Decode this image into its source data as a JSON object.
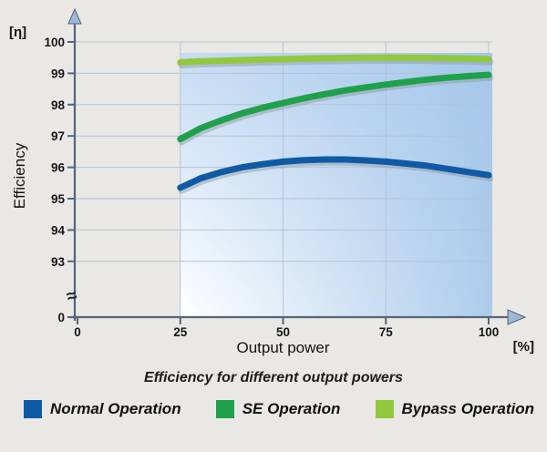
{
  "chart_data": {
    "type": "line",
    "title": "Efficiency for different output powers",
    "xlabel": "Output power",
    "xunit": "[%]",
    "ylabel": "Efficiency",
    "yunit": "[η]",
    "x_ticks": [
      0,
      25,
      50,
      75,
      100
    ],
    "y_ticks": [
      0,
      93,
      94,
      95,
      96,
      97,
      98,
      99,
      100
    ],
    "axis_break_symbol": "≈",
    "xlim": [
      0,
      100
    ],
    "ylim_main": [
      93,
      100
    ],
    "grid": true,
    "legend_position": "bottom",
    "colors": {
      "grid": "#b3c3d8",
      "axis": "#55657a",
      "arrow_fill": "#9cb8d4",
      "plot_fill_top": "#c6dcf4",
      "plot_fill_right": "#9fc3e8",
      "background": "#e9e8e4"
    },
    "series": [
      {
        "name": "Normal Operation",
        "color": "#0f5aa5",
        "x": [
          25,
          30,
          35,
          40,
          45,
          50,
          55,
          60,
          65,
          70,
          75,
          80,
          85,
          90,
          95,
          100
        ],
        "y": [
          95.35,
          95.65,
          95.85,
          96.0,
          96.1,
          96.18,
          96.23,
          96.25,
          96.25,
          96.22,
          96.18,
          96.12,
          96.05,
          95.95,
          95.85,
          95.75
        ]
      },
      {
        "name": "SE Operation",
        "color": "#1fa14b",
        "x": [
          25,
          30,
          35,
          40,
          45,
          50,
          55,
          60,
          65,
          70,
          75,
          80,
          85,
          90,
          95,
          100
        ],
        "y": [
          96.9,
          97.25,
          97.5,
          97.72,
          97.9,
          98.05,
          98.2,
          98.33,
          98.45,
          98.55,
          98.64,
          98.72,
          98.8,
          98.86,
          98.91,
          98.95
        ]
      },
      {
        "name": "Bypass Operation",
        "color": "#92c83e",
        "x": [
          25,
          30,
          35,
          40,
          45,
          50,
          55,
          60,
          65,
          70,
          75,
          80,
          85,
          90,
          95,
          100
        ],
        "y": [
          99.35,
          99.38,
          99.4,
          99.42,
          99.44,
          99.45,
          99.47,
          99.48,
          99.49,
          99.5,
          99.5,
          99.5,
          99.49,
          99.48,
          99.47,
          99.45
        ]
      }
    ]
  }
}
